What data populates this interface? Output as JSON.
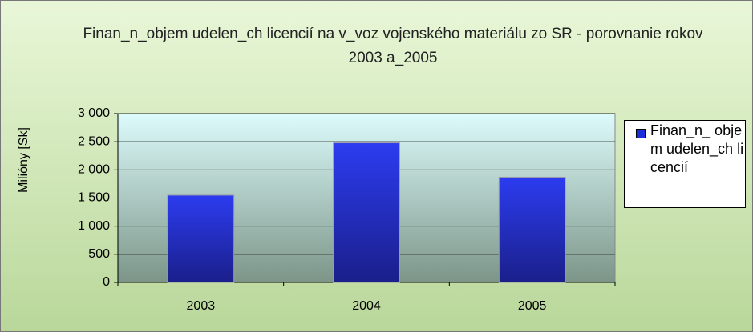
{
  "chart_data": {
    "type": "bar",
    "title": "Finan_n_objem udelen_ch licencií na v_voz vojenského materiálu zo SR - porovnanie rokov 2003 a_2005",
    "y_label": "Milióny [Sk]",
    "categories": [
      "2003",
      "2004",
      "2005"
    ],
    "series": [
      {
        "name": "Finan_n_ objem udelen_ch licencií",
        "color": "#1a2fd9",
        "values": [
          1550,
          2480,
          1870
        ]
      }
    ],
    "ylim": [
      0,
      3000
    ],
    "yticks": [
      0,
      500,
      {
        "value": 1000,
        "label": "1 000"
      },
      {
        "value": 1500,
        "label": "1 500"
      },
      {
        "value": 2000,
        "label": "2 000"
      },
      {
        "value": 2500,
        "label": "2 500"
      },
      {
        "value": 3000,
        "label": "3 000"
      }
    ],
    "grid": true,
    "legend": "right"
  }
}
